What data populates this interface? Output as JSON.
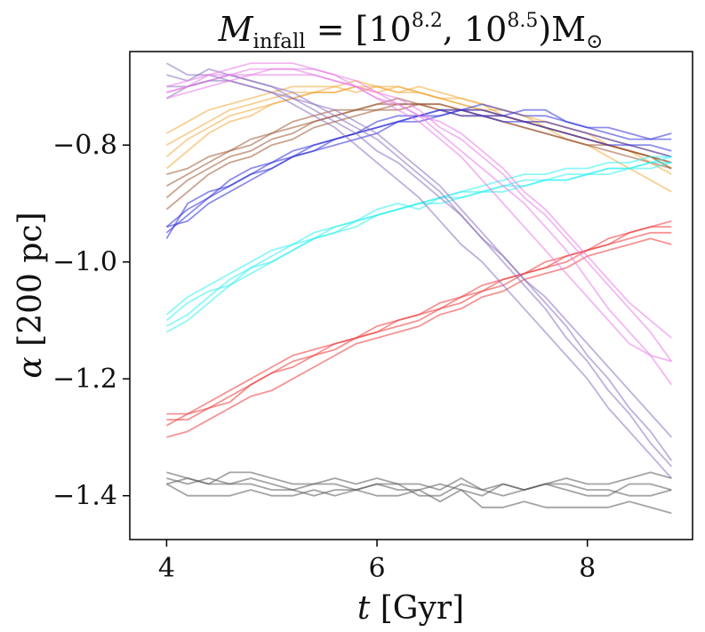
{
  "chart_data": {
    "type": "line",
    "title": {
      "prefix": "M",
      "prefix_sub": "infall",
      "middle": " = [10",
      "exp1": "8.2",
      "sep": ", 10",
      "exp2": "8.5",
      "suffix": ")M",
      "suffix_sub": "⊙"
    },
    "xlabel": {
      "symbol": "t",
      "unit": " [Gyr]"
    },
    "ylabel": {
      "symbol": "α",
      "unit": " [200 pc]"
    },
    "xlim": [
      3.65,
      9.0
    ],
    "ylim": [
      -1.475,
      -0.64
    ],
    "xticks": [
      4,
      6,
      8
    ],
    "xtick_labels": [
      "4",
      "6",
      "8"
    ],
    "yticks": [
      -0.8,
      -1.0,
      -1.2,
      -1.4
    ],
    "ytick_labels": [
      "−0.8",
      "−1.0",
      "−1.2",
      "−1.4"
    ],
    "grid": false,
    "x": [
      4.0,
      4.2,
      4.4,
      4.6,
      4.8,
      5.0,
      5.2,
      5.4,
      5.6,
      5.8,
      6.0,
      6.2,
      6.4,
      6.6,
      6.8,
      7.0,
      7.2,
      7.4,
      7.6,
      7.8,
      8.0,
      8.2,
      8.4,
      8.6,
      8.8
    ],
    "groups": [
      {
        "color": "#f2a93b",
        "lines": [
          [
            -0.8,
            -0.78,
            -0.76,
            -0.74,
            -0.73,
            -0.72,
            -0.71,
            -0.71,
            -0.71,
            -0.7,
            -0.7,
            -0.71,
            -0.7,
            -0.71,
            -0.72,
            -0.73,
            -0.74,
            -0.75,
            -0.76,
            -0.77,
            -0.78,
            -0.8,
            -0.81,
            -0.83,
            -0.85
          ],
          [
            -0.82,
            -0.79,
            -0.77,
            -0.75,
            -0.74,
            -0.73,
            -0.72,
            -0.71,
            -0.7,
            -0.71,
            -0.7,
            -0.7,
            -0.71,
            -0.72,
            -0.72,
            -0.73,
            -0.75,
            -0.76,
            -0.77,
            -0.79,
            -0.8,
            -0.82,
            -0.84,
            -0.86,
            -0.88
          ],
          [
            -0.78,
            -0.76,
            -0.74,
            -0.73,
            -0.72,
            -0.71,
            -0.7,
            -0.7,
            -0.7,
            -0.69,
            -0.7,
            -0.71,
            -0.71,
            -0.72,
            -0.73,
            -0.74,
            -0.75,
            -0.76,
            -0.76,
            -0.77,
            -0.78,
            -0.79,
            -0.8,
            -0.81,
            -0.82
          ],
          [
            -0.84,
            -0.81,
            -0.78,
            -0.76,
            -0.75,
            -0.73,
            -0.72,
            -0.71,
            -0.71,
            -0.7,
            -0.71,
            -0.7,
            -0.71,
            -0.72,
            -0.73,
            -0.74,
            -0.74,
            -0.75,
            -0.77,
            -0.78,
            -0.79,
            -0.8,
            -0.81,
            -0.82,
            -0.84
          ]
        ]
      },
      {
        "color": "#9c5a35",
        "lines": [
          [
            -0.87,
            -0.85,
            -0.83,
            -0.81,
            -0.8,
            -0.78,
            -0.77,
            -0.76,
            -0.75,
            -0.74,
            -0.73,
            -0.73,
            -0.73,
            -0.73,
            -0.74,
            -0.74,
            -0.75,
            -0.76,
            -0.77,
            -0.78,
            -0.79,
            -0.8,
            -0.81,
            -0.82,
            -0.83
          ],
          [
            -0.89,
            -0.86,
            -0.84,
            -0.82,
            -0.81,
            -0.79,
            -0.78,
            -0.76,
            -0.75,
            -0.74,
            -0.74,
            -0.73,
            -0.73,
            -0.74,
            -0.74,
            -0.75,
            -0.75,
            -0.76,
            -0.77,
            -0.78,
            -0.79,
            -0.8,
            -0.81,
            -0.82,
            -0.84
          ],
          [
            -0.91,
            -0.88,
            -0.85,
            -0.83,
            -0.82,
            -0.8,
            -0.79,
            -0.77,
            -0.76,
            -0.75,
            -0.74,
            -0.74,
            -0.73,
            -0.74,
            -0.75,
            -0.75,
            -0.76,
            -0.77,
            -0.78,
            -0.79,
            -0.8,
            -0.8,
            -0.81,
            -0.82,
            -0.83
          ],
          [
            -0.85,
            -0.84,
            -0.82,
            -0.81,
            -0.79,
            -0.78,
            -0.76,
            -0.75,
            -0.74,
            -0.74,
            -0.73,
            -0.72,
            -0.73,
            -0.73,
            -0.74,
            -0.75,
            -0.76,
            -0.77,
            -0.78,
            -0.79,
            -0.8,
            -0.81,
            -0.82,
            -0.83,
            -0.84
          ]
        ]
      },
      {
        "color": "#2f2fd8",
        "lines": [
          [
            -0.95,
            -0.92,
            -0.89,
            -0.87,
            -0.85,
            -0.83,
            -0.82,
            -0.8,
            -0.79,
            -0.78,
            -0.76,
            -0.75,
            -0.75,
            -0.74,
            -0.74,
            -0.74,
            -0.75,
            -0.74,
            -0.74,
            -0.76,
            -0.77,
            -0.78,
            -0.79,
            -0.79,
            -0.79
          ],
          [
            -0.94,
            -0.91,
            -0.89,
            -0.86,
            -0.84,
            -0.83,
            -0.81,
            -0.8,
            -0.79,
            -0.78,
            -0.77,
            -0.76,
            -0.76,
            -0.75,
            -0.74,
            -0.73,
            -0.74,
            -0.75,
            -0.75,
            -0.76,
            -0.77,
            -0.77,
            -0.78,
            -0.79,
            -0.78
          ],
          [
            -0.96,
            -0.9,
            -0.88,
            -0.87,
            -0.85,
            -0.84,
            -0.82,
            -0.81,
            -0.8,
            -0.79,
            -0.78,
            -0.76,
            -0.75,
            -0.75,
            -0.74,
            -0.75,
            -0.76,
            -0.76,
            -0.77,
            -0.78,
            -0.79,
            -0.8,
            -0.8,
            -0.81,
            -0.82
          ],
          [
            -0.94,
            -0.93,
            -0.9,
            -0.88,
            -0.86,
            -0.84,
            -0.82,
            -0.81,
            -0.79,
            -0.78,
            -0.77,
            -0.76,
            -0.75,
            -0.74,
            -0.75,
            -0.75,
            -0.75,
            -0.76,
            -0.76,
            -0.77,
            -0.78,
            -0.79,
            -0.8,
            -0.8,
            -0.81
          ]
        ]
      },
      {
        "color": "#2ff0f0",
        "lines": [
          [
            -1.09,
            -1.06,
            -1.04,
            -1.02,
            -1.0,
            -0.98,
            -0.97,
            -0.95,
            -0.94,
            -0.93,
            -0.92,
            -0.91,
            -0.9,
            -0.89,
            -0.88,
            -0.88,
            -0.87,
            -0.86,
            -0.86,
            -0.85,
            -0.85,
            -0.84,
            -0.84,
            -0.83,
            -0.83
          ],
          [
            -1.11,
            -1.09,
            -1.06,
            -1.03,
            -1.01,
            -0.99,
            -0.97,
            -0.96,
            -0.94,
            -0.93,
            -0.92,
            -0.91,
            -0.9,
            -0.9,
            -0.89,
            -0.88,
            -0.88,
            -0.87,
            -0.86,
            -0.86,
            -0.85,
            -0.85,
            -0.84,
            -0.84,
            -0.83
          ],
          [
            -1.1,
            -1.07,
            -1.05,
            -1.04,
            -1.02,
            -1.0,
            -0.98,
            -0.96,
            -0.95,
            -0.93,
            -0.91,
            -0.9,
            -0.91,
            -0.89,
            -0.88,
            -0.87,
            -0.86,
            -0.85,
            -0.85,
            -0.84,
            -0.84,
            -0.83,
            -0.83,
            -0.82,
            -0.82
          ],
          [
            -1.12,
            -1.1,
            -1.07,
            -1.04,
            -1.01,
            -1.0,
            -0.98,
            -0.96,
            -0.95,
            -0.94,
            -0.92,
            -0.91,
            -0.9,
            -0.89,
            -0.89,
            -0.88,
            -0.87,
            -0.87,
            -0.86,
            -0.86,
            -0.85,
            -0.84,
            -0.84,
            -0.83,
            -0.82
          ]
        ]
      },
      {
        "color": "#ee3a3a",
        "lines": [
          [
            -1.26,
            -1.26,
            -1.25,
            -1.23,
            -1.21,
            -1.19,
            -1.17,
            -1.16,
            -1.14,
            -1.13,
            -1.12,
            -1.1,
            -1.09,
            -1.08,
            -1.06,
            -1.05,
            -1.03,
            -1.02,
            -1.01,
            -0.99,
            -0.98,
            -0.96,
            -0.95,
            -0.94,
            -0.93
          ],
          [
            -1.28,
            -1.26,
            -1.24,
            -1.22,
            -1.2,
            -1.18,
            -1.16,
            -1.15,
            -1.14,
            -1.13,
            -1.11,
            -1.1,
            -1.09,
            -1.07,
            -1.06,
            -1.04,
            -1.03,
            -1.02,
            -1.0,
            -0.99,
            -0.98,
            -0.97,
            -0.95,
            -0.94,
            -0.94
          ],
          [
            -1.27,
            -1.27,
            -1.25,
            -1.24,
            -1.21,
            -1.19,
            -1.18,
            -1.16,
            -1.15,
            -1.13,
            -1.12,
            -1.11,
            -1.1,
            -1.08,
            -1.07,
            -1.05,
            -1.04,
            -1.02,
            -1.01,
            -1.0,
            -0.98,
            -0.97,
            -0.96,
            -0.95,
            -0.95
          ],
          [
            -1.3,
            -1.29,
            -1.27,
            -1.25,
            -1.23,
            -1.22,
            -1.2,
            -1.18,
            -1.16,
            -1.14,
            -1.13,
            -1.12,
            -1.11,
            -1.09,
            -1.08,
            -1.06,
            -1.05,
            -1.03,
            -1.02,
            -1.01,
            -0.99,
            -0.98,
            -0.97,
            -0.96,
            -0.97
          ]
        ]
      },
      {
        "color": "#8a6fc0",
        "lines": [
          [
            -0.66,
            -0.68,
            -0.68,
            -0.69,
            -0.7,
            -0.71,
            -0.72,
            -0.73,
            -0.75,
            -0.77,
            -0.79,
            -0.82,
            -0.85,
            -0.88,
            -0.92,
            -0.96,
            -1.0,
            -1.04,
            -1.08,
            -1.13,
            -1.17,
            -1.22,
            -1.26,
            -1.31,
            -1.35
          ],
          [
            -0.68,
            -0.69,
            -0.67,
            -0.68,
            -0.69,
            -0.7,
            -0.71,
            -0.73,
            -0.74,
            -0.76,
            -0.78,
            -0.81,
            -0.84,
            -0.87,
            -0.91,
            -0.95,
            -0.99,
            -1.03,
            -1.07,
            -1.11,
            -1.16,
            -1.2,
            -1.25,
            -1.29,
            -1.34
          ],
          [
            -0.7,
            -0.7,
            -0.69,
            -0.69,
            -0.7,
            -0.71,
            -0.73,
            -0.75,
            -0.77,
            -0.8,
            -0.83,
            -0.86,
            -0.89,
            -0.93,
            -0.97,
            -1.0,
            -1.04,
            -1.08,
            -1.12,
            -1.16,
            -1.2,
            -1.25,
            -1.29,
            -1.33,
            -1.37
          ],
          [
            -0.72,
            -0.7,
            -0.69,
            -0.68,
            -0.69,
            -0.7,
            -0.72,
            -0.74,
            -0.76,
            -0.78,
            -0.81,
            -0.83,
            -0.86,
            -0.89,
            -0.92,
            -0.96,
            -0.99,
            -1.03,
            -1.06,
            -1.1,
            -1.14,
            -1.18,
            -1.22,
            -1.26,
            -1.3
          ]
        ]
      },
      {
        "color": "#e87be8",
        "lines": [
          [
            -0.7,
            -0.69,
            -0.68,
            -0.67,
            -0.66,
            -0.66,
            -0.66,
            -0.67,
            -0.68,
            -0.69,
            -0.71,
            -0.72,
            -0.74,
            -0.77,
            -0.79,
            -0.82,
            -0.85,
            -0.89,
            -0.92,
            -0.96,
            -1.0,
            -1.04,
            -1.08,
            -1.12,
            -1.17
          ],
          [
            -0.71,
            -0.7,
            -0.69,
            -0.68,
            -0.68,
            -0.67,
            -0.67,
            -0.67,
            -0.68,
            -0.7,
            -0.72,
            -0.73,
            -0.75,
            -0.78,
            -0.81,
            -0.84,
            -0.87,
            -0.9,
            -0.94,
            -0.98,
            -1.03,
            -1.08,
            -1.12,
            -1.16,
            -1.21
          ],
          [
            -0.72,
            -0.71,
            -0.7,
            -0.69,
            -0.68,
            -0.68,
            -0.68,
            -0.68,
            -0.69,
            -0.7,
            -0.71,
            -0.73,
            -0.75,
            -0.76,
            -0.78,
            -0.81,
            -0.84,
            -0.88,
            -0.91,
            -0.95,
            -0.99,
            -1.03,
            -1.07,
            -1.1,
            -1.13
          ],
          [
            -0.71,
            -0.7,
            -0.68,
            -0.68,
            -0.67,
            -0.67,
            -0.67,
            -0.68,
            -0.69,
            -0.7,
            -0.72,
            -0.74,
            -0.76,
            -0.79,
            -0.82,
            -0.86,
            -0.9,
            -0.94,
            -0.98,
            -1.02,
            -1.06,
            -1.1,
            -1.14,
            -1.16,
            -1.17
          ]
        ]
      },
      {
        "color": "#5a5a5a",
        "lines": [
          [
            -1.36,
            -1.37,
            -1.38,
            -1.36,
            -1.36,
            -1.37,
            -1.38,
            -1.38,
            -1.37,
            -1.38,
            -1.37,
            -1.38,
            -1.38,
            -1.39,
            -1.37,
            -1.39,
            -1.38,
            -1.39,
            -1.38,
            -1.37,
            -1.38,
            -1.38,
            -1.37,
            -1.36,
            -1.37
          ],
          [
            -1.37,
            -1.38,
            -1.37,
            -1.38,
            -1.37,
            -1.38,
            -1.39,
            -1.38,
            -1.38,
            -1.39,
            -1.38,
            -1.39,
            -1.39,
            -1.38,
            -1.39,
            -1.4,
            -1.38,
            -1.39,
            -1.38,
            -1.39,
            -1.4,
            -1.4,
            -1.38,
            -1.38,
            -1.39
          ],
          [
            -1.38,
            -1.4,
            -1.4,
            -1.4,
            -1.39,
            -1.4,
            -1.4,
            -1.39,
            -1.4,
            -1.39,
            -1.4,
            -1.4,
            -1.39,
            -1.41,
            -1.39,
            -1.42,
            -1.42,
            -1.41,
            -1.42,
            -1.42,
            -1.42,
            -1.42,
            -1.41,
            -1.42,
            -1.43
          ],
          [
            -1.38,
            -1.37,
            -1.38,
            -1.38,
            -1.38,
            -1.39,
            -1.39,
            -1.4,
            -1.39,
            -1.39,
            -1.38,
            -1.38,
            -1.4,
            -1.4,
            -1.38,
            -1.39,
            -1.4,
            -1.39,
            -1.38,
            -1.38,
            -1.39,
            -1.39,
            -1.4,
            -1.4,
            -1.39
          ]
        ]
      }
    ]
  }
}
